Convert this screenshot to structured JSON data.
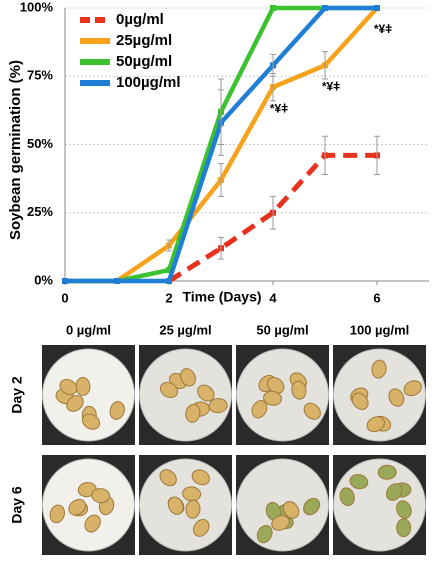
{
  "chart_data": {
    "type": "line",
    "y_label": "Soybean germination (%)",
    "x_label": "Time (Days)",
    "x": [
      0,
      1,
      2,
      3,
      4,
      5,
      6
    ],
    "xlim": [
      0,
      7
    ],
    "xticks": [
      0,
      2,
      4,
      6
    ],
    "ylim": [
      0,
      100
    ],
    "yticks": [
      {
        "value": 0,
        "label": "0%"
      },
      {
        "value": 25,
        "label": "25%"
      },
      {
        "value": 50,
        "label": "50%"
      },
      {
        "value": 75,
        "label": "75%"
      },
      {
        "value": 100,
        "label": "100%"
      }
    ],
    "grid": true,
    "legend": "upper left",
    "series": [
      {
        "name": "0µg/ml",
        "color": "#e8321e",
        "dashed": true,
        "values": [
          null,
          null,
          0,
          12,
          25,
          46,
          46
        ],
        "errors": [
          null,
          null,
          null,
          4,
          6,
          7,
          7
        ]
      },
      {
        "name": "25µg/ml",
        "color": "#f7a21b",
        "values": [
          0,
          0,
          13,
          37,
          71,
          79,
          100
        ],
        "errors": [
          null,
          null,
          2,
          6,
          5,
          5,
          null
        ]
      },
      {
        "name": "50µg/ml",
        "color": "#3cc22f",
        "values": [
          0,
          0,
          4,
          62,
          100,
          100,
          100
        ],
        "errors": [
          null,
          null,
          null,
          12,
          null,
          null,
          null
        ]
      },
      {
        "name": "100µg/ml",
        "color": "#1f7fd6",
        "values": [
          0,
          0,
          0,
          58,
          79,
          100,
          100
        ],
        "errors": [
          null,
          null,
          null,
          12,
          4,
          null,
          null
        ]
      }
    ],
    "annotations": [
      {
        "text": "*¥ǂ",
        "x": 4
      },
      {
        "text": "*¥ǂ",
        "x": 5
      },
      {
        "text": "*¥ǂ",
        "x": 6
      }
    ]
  },
  "photo_grid": {
    "columns": [
      "0 µg/ml",
      "25 µg/ml",
      "50 µg/ml",
      "100 µg/ml"
    ],
    "rows": [
      "Day 2",
      "Day 6"
    ]
  }
}
